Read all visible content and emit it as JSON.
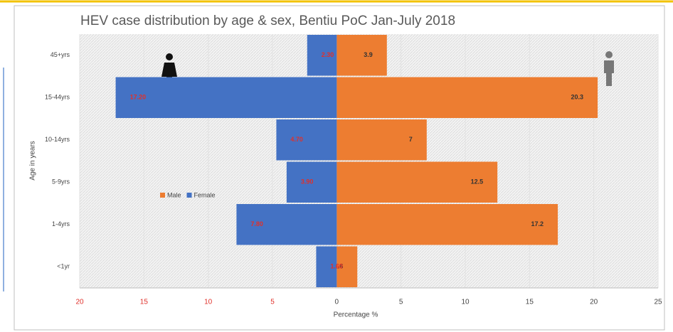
{
  "chart_data": {
    "type": "pyramid",
    "title": "HEV case distribution by age & sex, Bentiu PoC Jan-July  2018",
    "x_label": "Percentage %",
    "y_label": "Age in years",
    "categories": [
      "45+yrs",
      "15-44yrs",
      "10-14yrs",
      "5-9yrs",
      "1-4yrs",
      "<1yr"
    ],
    "series": [
      {
        "name": "Male",
        "color": "#ed7d31",
        "values": [
          3.9,
          20.3,
          7,
          12.5,
          17.2,
          1.6
        ]
      },
      {
        "name": "Female",
        "color": "#4472c4",
        "values": [
          -2.3,
          -17.2,
          -4.7,
          -3.9,
          -7.8,
          -1.6
        ],
        "value_labels": [
          "2.30",
          "17.20",
          "4.70",
          "3.90",
          "7.80",
          "1.60"
        ]
      }
    ],
    "xlim": [
      -20,
      25
    ],
    "xticks": [
      {
        "value": -20,
        "label": "20"
      },
      {
        "value": -15,
        "label": "15"
      },
      {
        "value": -10,
        "label": "10"
      },
      {
        "value": -5,
        "label": "5"
      },
      0,
      5,
      10,
      15,
      20,
      25
    ],
    "grid": true
  }
}
